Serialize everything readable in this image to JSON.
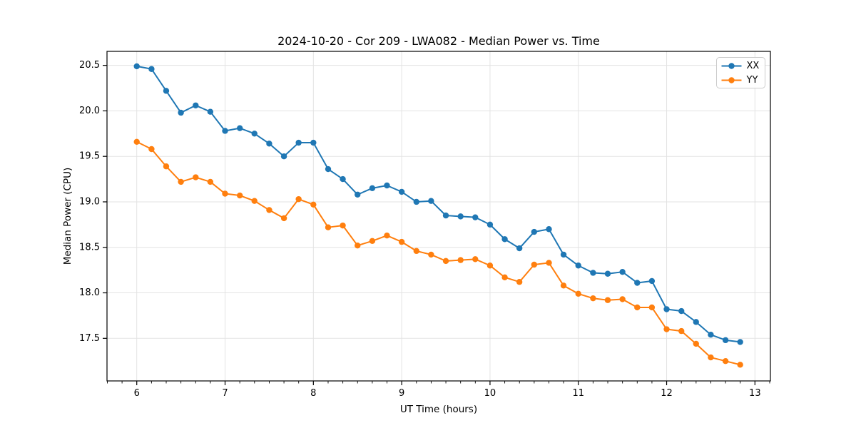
{
  "colors": {
    "background": "#ffffff",
    "grid": "#e3e3e3",
    "spine": "#000000",
    "tick": "#000000",
    "text": "#000000",
    "legend_border": "#cccccc",
    "legend_background": "#ffffff",
    "series_xx": "#1f77b4",
    "series_yy": "#ff7f0e"
  },
  "chart_data": {
    "type": "line",
    "title": "2024-10-20 - Cor 209 - LWA082 - Median Power vs. Time",
    "xlabel": "UT Time (hours)",
    "ylabel": "Median Power (CPU)",
    "xlim": [
      5.663,
      13.175
    ],
    "ylim": [
      17.032,
      20.654
    ],
    "xticks": [
      6,
      7,
      8,
      9,
      10,
      11,
      12,
      13
    ],
    "yticks": [
      17.5,
      18.0,
      18.5,
      19.0,
      19.5,
      20.0,
      20.5
    ],
    "x_minor_step": 0.16667,
    "grid": true,
    "legend_position": "upper right",
    "marker": "circle",
    "x": [
      6.0,
      6.167,
      6.333,
      6.5,
      6.667,
      6.833,
      7.0,
      7.167,
      7.333,
      7.5,
      7.667,
      7.833,
      8.0,
      8.167,
      8.333,
      8.5,
      8.667,
      8.833,
      9.0,
      9.167,
      9.333,
      9.5,
      9.667,
      9.833,
      10.0,
      10.167,
      10.333,
      10.5,
      10.667,
      10.833,
      11.0,
      11.167,
      11.333,
      11.5,
      11.667,
      11.833,
      12.0,
      12.167,
      12.333,
      12.5,
      12.667,
      12.833
    ],
    "series": [
      {
        "name": "XX",
        "color": "#1f77b4",
        "values": [
          20.49,
          20.46,
          20.22,
          19.98,
          20.06,
          19.99,
          19.78,
          19.81,
          19.75,
          19.64,
          19.5,
          19.65,
          19.65,
          19.36,
          19.25,
          19.08,
          19.15,
          19.18,
          19.11,
          19.0,
          19.01,
          18.85,
          18.84,
          18.83,
          18.75,
          18.59,
          18.49,
          18.67,
          18.7,
          18.42,
          18.3,
          18.22,
          18.21,
          18.23,
          18.11,
          18.13,
          17.82,
          17.8,
          17.68,
          17.54,
          17.48,
          17.46
        ]
      },
      {
        "name": "YY",
        "color": "#ff7f0e",
        "values": [
          19.66,
          19.58,
          19.39,
          19.22,
          19.27,
          19.22,
          19.09,
          19.07,
          19.01,
          18.91,
          18.82,
          19.03,
          18.97,
          18.72,
          18.74,
          18.52,
          18.57,
          18.63,
          18.56,
          18.46,
          18.42,
          18.35,
          18.36,
          18.37,
          18.3,
          18.17,
          18.12,
          18.31,
          18.33,
          18.08,
          17.99,
          17.94,
          17.92,
          17.93,
          17.84,
          17.84,
          17.6,
          17.58,
          17.44,
          17.29,
          17.25,
          17.21
        ]
      }
    ]
  }
}
